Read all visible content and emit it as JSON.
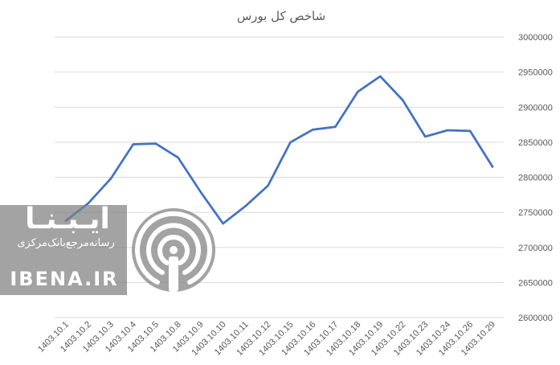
{
  "chart_data": {
    "type": "line",
    "title": "شاخص کل بورس",
    "categories": [
      "1403.10.1",
      "1403.10.2",
      "1403.10.3",
      "1403.10.4",
      "1403.10.5",
      "1403.10.8",
      "1403.10.9",
      "1403.10.10",
      "1403.10.11",
      "1403.10.12",
      "1403.10.15",
      "1403.10.16",
      "1403.10.17",
      "1403.10.18",
      "1403.10.19",
      "1403.10.22",
      "1403.10.23",
      "1403.10.24",
      "1403.10.26",
      "1403.10.29"
    ],
    "series": [
      {
        "values": [
          2738000,
          2763000,
          2798000,
          2847000,
          2848000,
          2828000,
          2779000,
          2734000,
          2759000,
          2788000,
          2850000,
          2868000,
          2872000,
          2922000,
          2944000,
          2910000,
          2858000,
          2867000,
          2866000,
          2815000
        ],
        "color": "#4472c4"
      }
    ],
    "ylim": [
      2600000,
      3000000
    ],
    "yticks": [
      "2600000",
      "2650000",
      "2700000",
      "2750000",
      "2800000",
      "2850000",
      "2900000",
      "2950000",
      "3000000"
    ],
    "grid": true,
    "legend": "none"
  },
  "watermark": {
    "name_fa": "ایـبـنـا",
    "tagline_fa": "رسانه‌مرجع‌بانک‌مرکزی",
    "name_latin": "IBENA.IR",
    "logo": "broadcast-ring-icon"
  }
}
